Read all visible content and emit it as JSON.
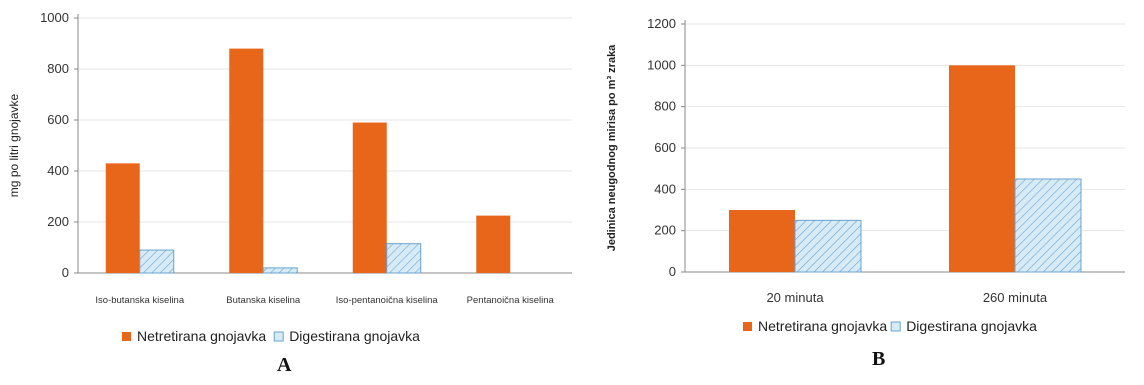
{
  "colors": {
    "netretirana": "#e8661a",
    "digestirana_fill": "#d7ebf7",
    "digestirana_stroke": "#6aa3cf",
    "grid": "#e6e6e6",
    "axis": "#888888"
  },
  "panels": [
    {
      "label": "A"
    },
    {
      "label": "B"
    }
  ],
  "chart_data": [
    {
      "type": "bar",
      "title": "",
      "xlabel": "",
      "ylabel": "mg po litri gnojavke",
      "ylim": [
        0,
        1000
      ],
      "yticks": [
        "0",
        "200",
        "400",
        "600",
        "800",
        "1000"
      ],
      "grid": true,
      "legend_position": "bottom",
      "categories": [
        "Iso-butanska kiselina",
        "Butanska kiselina",
        "Iso-pentanoična kiselina",
        "Pentanoična kiselina"
      ],
      "series": [
        {
          "name": "Netretirana gnojavka",
          "values": [
            430,
            880,
            590,
            225
          ]
        },
        {
          "name": "Digestirana gnojavka",
          "values": [
            90,
            20,
            115,
            0
          ]
        }
      ]
    },
    {
      "type": "bar",
      "title": "",
      "xlabel": "",
      "ylabel": "Jedinica neugodnog mirisa po m³ zraka",
      "ylim": [
        0,
        1200
      ],
      "yticks": [
        "0",
        "200",
        "400",
        "600",
        "800",
        "1000",
        "1200"
      ],
      "grid": true,
      "legend_position": "bottom",
      "categories": [
        "20 minuta",
        "260 minuta"
      ],
      "series": [
        {
          "name": "Netretirana gnojavka",
          "values": [
            300,
            1000
          ]
        },
        {
          "name": "Digestirana gnojavka",
          "values": [
            250,
            450
          ]
        }
      ]
    }
  ]
}
